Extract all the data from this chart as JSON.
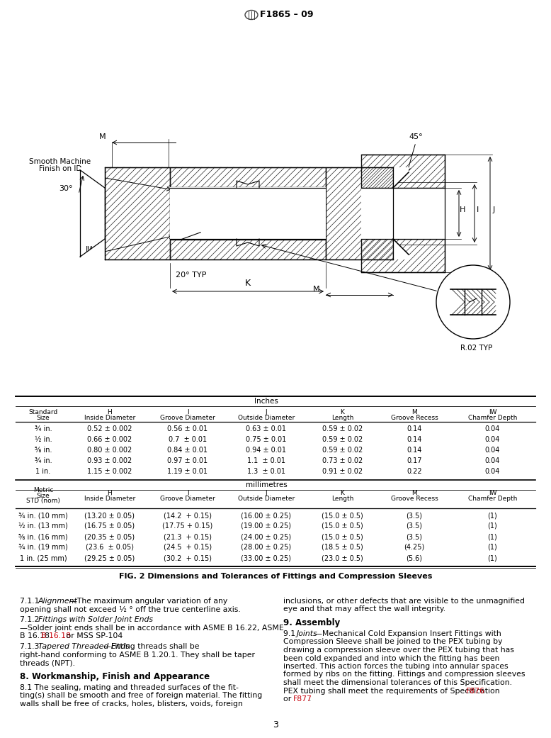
{
  "title": "F1865 – 09",
  "page_number": "3",
  "fig_caption": "FIG. 2 Dimensions and Tolerances of Fittings and Compression Sleeves",
  "table_inches_rows": [
    [
      "¾ in.",
      "0.52 ± 0.002",
      "0.56 ± 0.01",
      "0.63 ± 0.01",
      "0.59 ± 0.02",
      "0.14",
      "0.04"
    ],
    [
      "½ in.",
      "0.66 ± 0.002",
      "0.7  ± 0.01",
      "0.75 ± 0.01",
      "0.59 ± 0.02",
      "0.14",
      "0.04"
    ],
    [
      "⅝ in.",
      "0.80 ± 0.002",
      "0.84 ± 0.01",
      "0.94 ± 0.01",
      "0.59 ± 0.02",
      "0.14",
      "0.04"
    ],
    [
      "¾ in.",
      "0.93 ± 0.002",
      "0.97 ± 0.01",
      "1.1  ± 0.01",
      "0.73 ± 0.02",
      "0.17",
      "0.04"
    ],
    [
      "1 in.",
      "1.15 ± 0.002",
      "1.19 ± 0.01",
      "1.3  ± 0.01",
      "0.91 ± 0.02",
      "0.22",
      "0.04"
    ]
  ],
  "table_metric_rows": [
    [
      "¾ in. (10 mm)",
      "(13.20 ± 0.05)",
      "(14.2  + 0.15)",
      "(16.00 ± 0.25)",
      "(15.0 ± 0.5)",
      "(3.5)",
      "(1)"
    ],
    [
      "½ in. (13 mm)",
      "(16.75 ± 0.05)",
      "(17.75 + 0.15)",
      "(19.00 ± 0.25)",
      "(15.0 ± 0.5)",
      "(3.5)",
      "(1)"
    ],
    [
      "⅝ in. (16 mm)",
      "(20.35 ± 0.05)",
      "(21.3  + 0.15)",
      "(24.00 ± 0.25)",
      "(15.0 ± 0.5)",
      "(3.5)",
      "(1)"
    ],
    [
      "¾ in. (19 mm)",
      "(23.6  ± 0.05)",
      "(24.5  + 0.15)",
      "(28.00 ± 0.25)",
      "(18.5 ± 0.5)",
      "(4.25)",
      "(1)"
    ],
    [
      "1 in. (25 mm)",
      "(29.25 ± 0.05)",
      "(30.2  + 0.15)",
      "(33.00 ± 0.25)",
      "(23.0 ± 0.5)",
      "(5.6)",
      "(1)"
    ]
  ],
  "link_color": "#C8000A",
  "bg_color": "#FFFFFF"
}
